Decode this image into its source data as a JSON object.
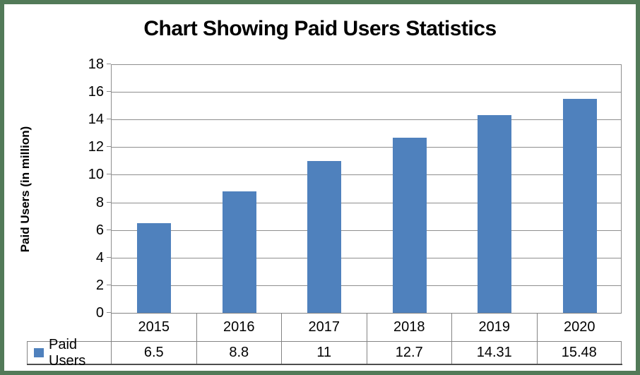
{
  "chart_data": {
    "type": "bar",
    "title": "Chart Showing Paid Users Statistics",
    "xlabel": "",
    "ylabel": "Paid Users (in million)",
    "categories": [
      "2015",
      "2016",
      "2017",
      "2018",
      "2019",
      "2020"
    ],
    "series": [
      {
        "name": "Paid Users",
        "values": [
          6.5,
          8.8,
          11,
          12.7,
          14.31,
          15.48
        ]
      }
    ],
    "value_labels": [
      "6.5",
      "8.8",
      "11",
      "12.7",
      "14.31",
      "15.48"
    ],
    "ylim": [
      0,
      18
    ],
    "ytick_step": 2,
    "yticks": [
      0,
      2,
      4,
      6,
      8,
      10,
      12,
      14,
      16,
      18
    ],
    "grid": "horizontal",
    "legend_position": "bottom-left",
    "data_table_shown": true,
    "colors": {
      "bar": "#4f81bd",
      "gridline": "#8e8e8e",
      "table_border": "#848484",
      "table_bottom_border": "#4d4d4d",
      "frame": "#527a58",
      "text": "#000000",
      "background": "#ffffff"
    }
  }
}
